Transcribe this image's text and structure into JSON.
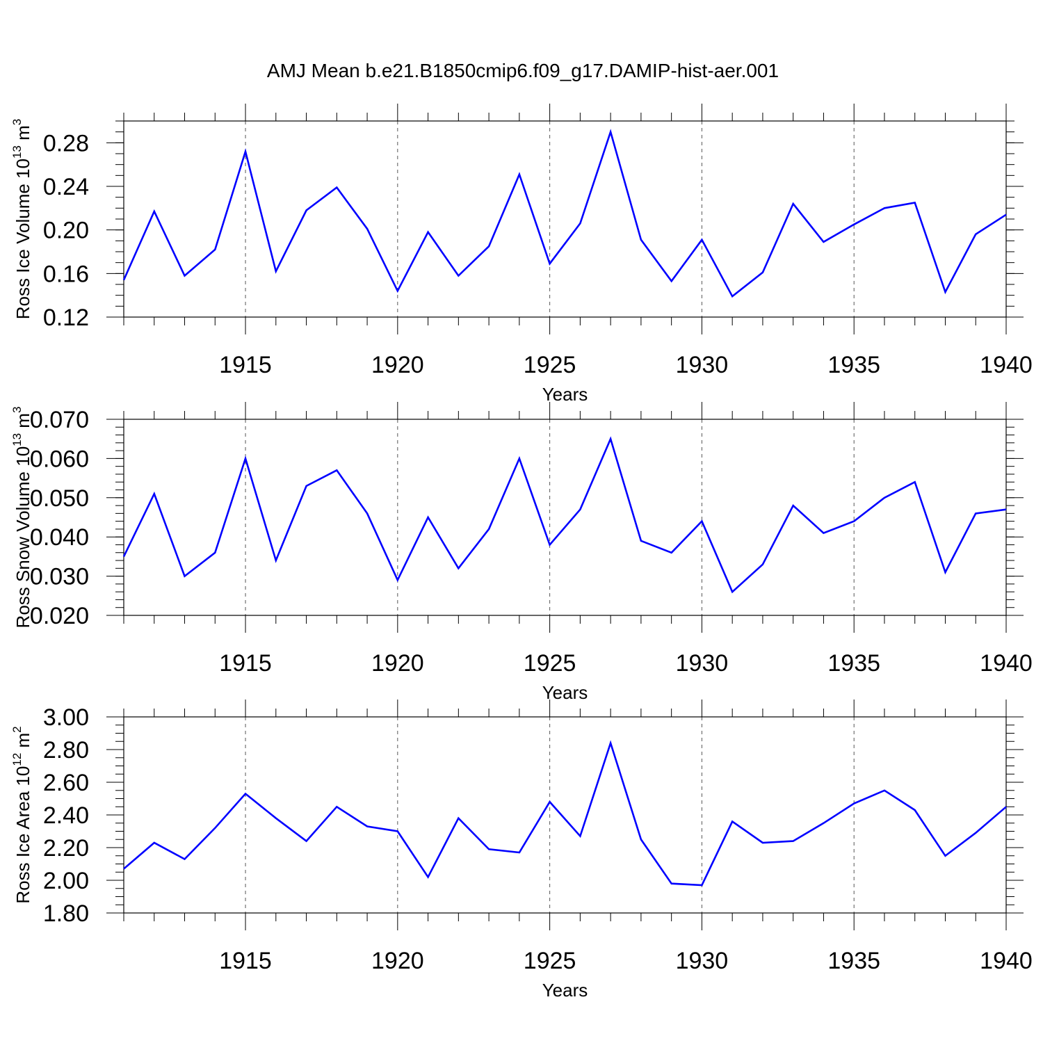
{
  "figure": {
    "title": "AMJ Mean b.e21.B1850cmip6.f09_g17.DAMIP-hist-aer.001",
    "line_color": "#0000ff"
  },
  "chart_data": [
    {
      "type": "line",
      "title": "AMJ Mean b.e21.B1850cmip6.f09_g17.DAMIP-hist-aer.001",
      "xlabel": "Years",
      "ylabel": "Ross Ice Volume 10",
      "ylabel_exp": "13",
      "ylabel_unit": " m",
      "ylabel_unit_exp": "3",
      "xlim": [
        1911,
        1940
      ],
      "ylim": [
        0.12,
        0.3
      ],
      "x_ticks": [
        1915,
        1920,
        1925,
        1930,
        1935,
        1940
      ],
      "x_tick_labels": [
        "1915",
        "1920",
        "1925",
        "1930",
        "1935",
        "1940"
      ],
      "y_ticks": [
        0.12,
        0.16,
        0.2,
        0.24,
        0.28
      ],
      "y_tick_labels": [
        "0.12",
        "0.16",
        "0.20",
        "0.24",
        "0.28"
      ],
      "y_minor_step": 0.01,
      "grid": "vertical dashed at major x ticks",
      "x": [
        1911,
        1912,
        1913,
        1914,
        1915,
        1916,
        1917,
        1918,
        1919,
        1920,
        1921,
        1922,
        1923,
        1924,
        1925,
        1926,
        1927,
        1928,
        1929,
        1930,
        1931,
        1932,
        1933,
        1934,
        1935,
        1936,
        1937,
        1938,
        1939,
        1940
      ],
      "series": [
        {
          "values": [
            0.154,
            0.217,
            0.158,
            0.182,
            0.272,
            0.162,
            0.218,
            0.239,
            0.201,
            0.144,
            0.198,
            0.158,
            0.185,
            0.251,
            0.169,
            0.206,
            0.29,
            0.191,
            0.153,
            0.191,
            0.139,
            0.161,
            0.224,
            0.189,
            0.205,
            0.22,
            0.225,
            0.143,
            0.196,
            0.214
          ]
        }
      ]
    },
    {
      "type": "line",
      "xlabel": "Years",
      "ylabel": "Ross Snow Volume 10",
      "ylabel_exp": "13",
      "ylabel_unit": " m",
      "ylabel_unit_exp": "3",
      "xlim": [
        1911,
        1940
      ],
      "ylim": [
        0.02,
        0.07
      ],
      "x_ticks": [
        1915,
        1920,
        1925,
        1930,
        1935,
        1940
      ],
      "x_tick_labels": [
        "1915",
        "1920",
        "1925",
        "1930",
        "1935",
        "1940"
      ],
      "y_ticks": [
        0.02,
        0.03,
        0.04,
        0.05,
        0.06,
        0.07
      ],
      "y_tick_labels": [
        "0.020",
        "0.030",
        "0.040",
        "0.050",
        "0.060",
        "0.070"
      ],
      "y_minor_step": 0.002,
      "grid": "vertical dashed at major x ticks",
      "x": [
        1911,
        1912,
        1913,
        1914,
        1915,
        1916,
        1917,
        1918,
        1919,
        1920,
        1921,
        1922,
        1923,
        1924,
        1925,
        1926,
        1927,
        1928,
        1929,
        1930,
        1931,
        1932,
        1933,
        1934,
        1935,
        1936,
        1937,
        1938,
        1939,
        1940
      ],
      "series": [
        {
          "values": [
            0.035,
            0.051,
            0.03,
            0.036,
            0.06,
            0.034,
            0.053,
            0.057,
            0.046,
            0.029,
            0.045,
            0.032,
            0.042,
            0.06,
            0.038,
            0.047,
            0.065,
            0.039,
            0.036,
            0.044,
            0.026,
            0.033,
            0.048,
            0.041,
            0.044,
            0.05,
            0.054,
            0.031,
            0.046,
            0.047
          ]
        }
      ]
    },
    {
      "type": "line",
      "xlabel": "Years",
      "ylabel": "Ross Ice Area 10",
      "ylabel_exp": "12",
      "ylabel_unit": " m",
      "ylabel_unit_exp": "2",
      "xlim": [
        1911,
        1940
      ],
      "ylim": [
        1.8,
        3.0
      ],
      "x_ticks": [
        1915,
        1920,
        1925,
        1930,
        1935,
        1940
      ],
      "x_tick_labels": [
        "1915",
        "1920",
        "1925",
        "1930",
        "1935",
        "1940"
      ],
      "y_ticks": [
        1.8,
        2.0,
        2.2,
        2.4,
        2.6,
        2.8,
        3.0
      ],
      "y_tick_labels": [
        "1.80",
        "2.00",
        "2.20",
        "2.40",
        "2.60",
        "2.80",
        "3.00"
      ],
      "y_minor_step": 0.05,
      "grid": "vertical dashed at major x ticks",
      "x": [
        1911,
        1912,
        1913,
        1914,
        1915,
        1916,
        1917,
        1918,
        1919,
        1920,
        1921,
        1922,
        1923,
        1924,
        1925,
        1926,
        1927,
        1928,
        1929,
        1930,
        1931,
        1932,
        1933,
        1934,
        1935,
        1936,
        1937,
        1938,
        1939,
        1940
      ],
      "series": [
        {
          "values": [
            2.07,
            2.23,
            2.13,
            2.32,
            2.53,
            2.38,
            2.24,
            2.45,
            2.33,
            2.3,
            2.02,
            2.38,
            2.19,
            2.17,
            2.48,
            2.27,
            2.84,
            2.25,
            1.98,
            1.97,
            2.36,
            2.23,
            2.24,
            2.35,
            2.47,
            2.55,
            2.43,
            2.15,
            2.29,
            2.45
          ]
        }
      ]
    }
  ]
}
